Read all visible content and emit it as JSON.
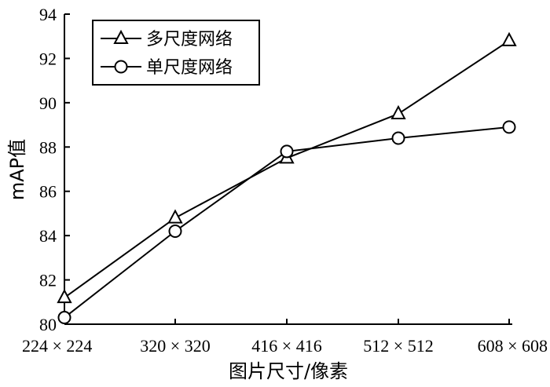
{
  "chart_data": {
    "type": "line",
    "categories": [
      "224 × 224",
      "320 × 320",
      "416 × 416",
      "512 × 512",
      "608 × 608"
    ],
    "series": [
      {
        "name": "多尺度网络",
        "marker": "triangle",
        "values": [
          81.2,
          84.8,
          87.5,
          89.5,
          92.8
        ]
      },
      {
        "name": "单尺度网络",
        "marker": "circle",
        "values": [
          80.3,
          84.2,
          87.8,
          88.4,
          88.9
        ]
      }
    ],
    "xlabel": "图片尺寸/像素",
    "ylabel": "mAP值",
    "ylim": [
      80,
      94
    ],
    "yticks": [
      "80",
      "82",
      "84",
      "86",
      "88",
      "90",
      "92",
      "94"
    ],
    "grid": false,
    "legend_position": "top-left"
  }
}
